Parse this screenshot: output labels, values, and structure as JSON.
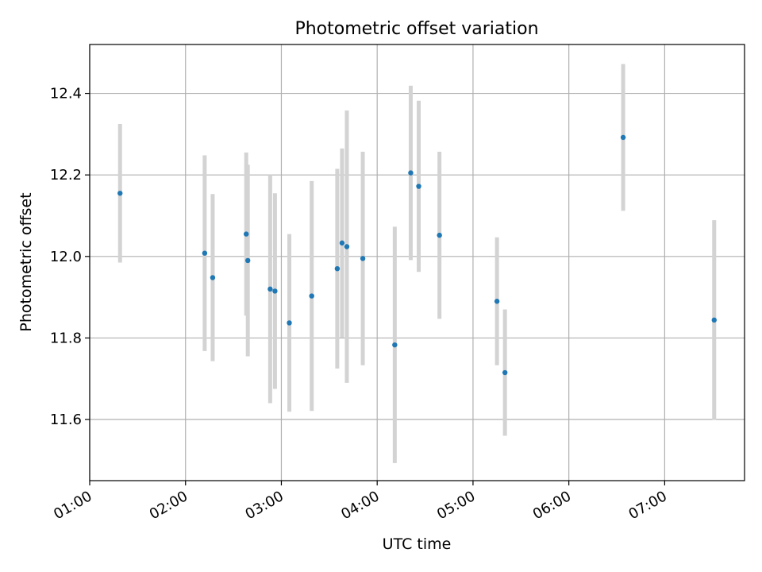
{
  "chart_data": {
    "type": "scatter",
    "title": "Photometric offset variation",
    "xlabel": "UTC time",
    "ylabel": "Photometric offset",
    "x_ticks": [
      "01:00",
      "02:00",
      "03:00",
      "04:00",
      "05:00",
      "06:00",
      "07:00"
    ],
    "y_ticks": [
      "11.6",
      "11.8",
      "12.0",
      "12.2",
      "12.4"
    ],
    "xlim": [
      "01:00",
      "07:50"
    ],
    "ylim": [
      11.45,
      12.52
    ],
    "grid": true,
    "point_color": "#1f77b4",
    "errorbar_color": "#d3d3d3",
    "points": [
      {
        "x": "01:19",
        "y": 12.155,
        "err": 0.17
      },
      {
        "x": "02:12",
        "y": 12.008,
        "err": 0.24
      },
      {
        "x": "02:17",
        "y": 11.948,
        "err": 0.205
      },
      {
        "x": "02:38",
        "y": 12.055,
        "err": 0.2
      },
      {
        "x": "02:39",
        "y": 11.99,
        "err": 0.235
      },
      {
        "x": "02:53",
        "y": 11.92,
        "err": 0.28
      },
      {
        "x": "02:56",
        "y": 11.915,
        "err": 0.24
      },
      {
        "x": "03:05",
        "y": 11.837,
        "err": 0.218
      },
      {
        "x": "03:19",
        "y": 11.903,
        "err": 0.282
      },
      {
        "x": "03:35",
        "y": 11.97,
        "err": 0.245
      },
      {
        "x": "03:38",
        "y": 12.033,
        "err": 0.232
      },
      {
        "x": "03:41",
        "y": 12.024,
        "err": 0.334
      },
      {
        "x": "03:51",
        "y": 11.995,
        "err": 0.262
      },
      {
        "x": "04:11",
        "y": 11.783,
        "err": 0.29
      },
      {
        "x": "04:21",
        "y": 12.205,
        "err": 0.214
      },
      {
        "x": "04:26",
        "y": 12.172,
        "err": 0.21
      },
      {
        "x": "04:39",
        "y": 12.052,
        "err": 0.205
      },
      {
        "x": "05:15",
        "y": 11.89,
        "err": 0.157
      },
      {
        "x": "05:20",
        "y": 11.715,
        "err": 0.155
      },
      {
        "x": "06:34",
        "y": 12.292,
        "err": 0.18
      },
      {
        "x": "07:31",
        "y": 11.844,
        "err": 0.245
      }
    ]
  }
}
